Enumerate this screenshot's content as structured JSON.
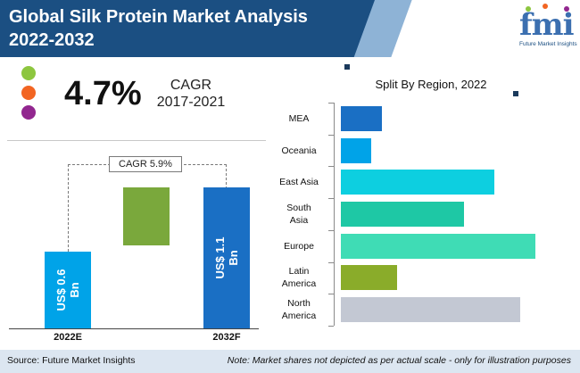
{
  "header": {
    "title_line1": "Global Silk Protein Market Analysis",
    "title_line2": "2022-2032",
    "bg_color": "#1b4f82"
  },
  "logo": {
    "word": "fmi",
    "tagline": "Future Market Insights"
  },
  "cagr_summary": {
    "value": "4.7%",
    "label_line1": "CAGR",
    "label_line2": "2017-2021",
    "dot_colors": [
      "#8dc63f",
      "#f26522",
      "#92278f"
    ]
  },
  "chart_data": [
    {
      "type": "bar",
      "subtype": "waterfall",
      "categories": [
        "2022E",
        "",
        "2032F"
      ],
      "values": [
        0.6,
        0.5,
        1.1
      ],
      "bar_labels": [
        "US$ 0.6 Bn",
        "",
        "US$ 1.1 Bn"
      ],
      "colors": [
        "#00a3e8",
        "#7aa83c",
        "#1a6fc4"
      ],
      "annotation": "CAGR 5.9%",
      "ylim": [
        0,
        1.1
      ]
    },
    {
      "type": "bar",
      "orientation": "horizontal",
      "title": "Split By Region, 2022",
      "categories": [
        "MEA",
        "Oceania",
        "East Asia",
        "South Asia",
        "Europe",
        "Latin America",
        "North America"
      ],
      "label_lines": [
        [
          "MEA"
        ],
        [
          "Oceania"
        ],
        [
          "East Asia"
        ],
        [
          "South",
          "Asia"
        ],
        [
          "Europe"
        ],
        [
          "Latin",
          "America"
        ],
        [
          "North",
          "America"
        ]
      ],
      "values": [
        8,
        6,
        30,
        24,
        38,
        11,
        35
      ],
      "xlim": [
        0,
        38
      ],
      "colors": [
        "#1a6fc4",
        "#00a3e8",
        "#0dcfe0",
        "#1ec8a5",
        "#3fdcb5",
        "#8aac2a",
        "#c3c8d3"
      ]
    }
  ],
  "footer": {
    "source": "Source: Future Market Insights",
    "note": "Note: Market shares not depicted as per actual scale - only for illustration purposes",
    "bg_color": "#dce6f1"
  }
}
